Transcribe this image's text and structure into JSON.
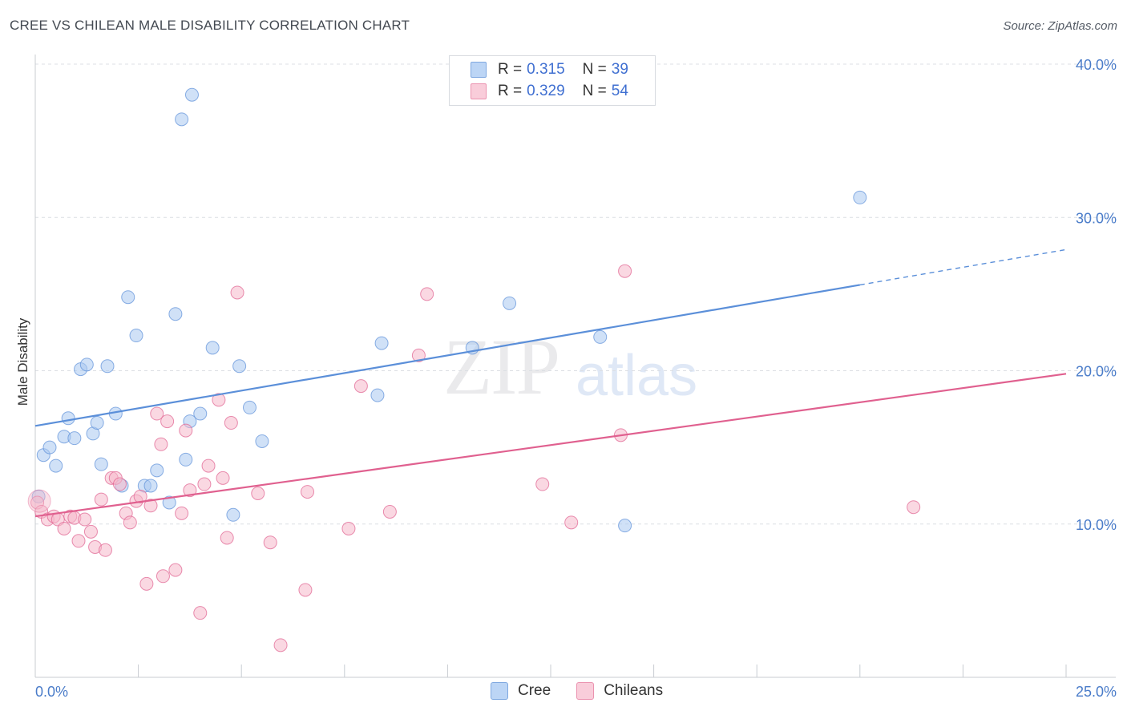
{
  "title": "CREE VS CHILEAN MALE DISABILITY CORRELATION CHART",
  "source": "Source: ZipAtlas.com",
  "watermark": {
    "zip": "ZIP",
    "atlas": "atlas"
  },
  "legend_top": [
    {
      "r_label": "R =",
      "r_value": "0.315",
      "n_label": "N =",
      "n_value": "39",
      "color": "#a9c8f0"
    },
    {
      "r_label": "R =",
      "r_value": "0.329",
      "n_label": "N =",
      "n_value": "54",
      "color": "#f5b8ca"
    }
  ],
  "legend_bottom": [
    {
      "label": "Cree",
      "color": "#a9c8f0"
    },
    {
      "label": "Chileans",
      "color": "#f5b8ca"
    }
  ],
  "chart_data": {
    "type": "scatter",
    "title": "CREE VS CHILEAN MALE DISABILITY CORRELATION CHART",
    "xlabel": "",
    "ylabel": "Male Disability",
    "xlim": [
      0,
      25
    ],
    "ylim": [
      0,
      40
    ],
    "x_tick_labels": [
      "0.0%",
      "25.0%"
    ],
    "y_ticks": [
      10,
      20,
      30,
      40
    ],
    "y_tick_labels": [
      "10.0%",
      "20.0%",
      "30.0%",
      "40.0%"
    ],
    "grid": true,
    "series": [
      {
        "name": "Cree",
        "color": "#5b8fd9",
        "fill": "#a9c8f0",
        "trend": {
          "x0": 0,
          "y0": 16.4,
          "x1": 20,
          "y1": 25.6,
          "dashed_to_x": 25,
          "dashed_to_y": 27.9
        },
        "points": [
          [
            0.08,
            11.8
          ],
          [
            0.2,
            14.5
          ],
          [
            0.35,
            15.0
          ],
          [
            0.5,
            13.8
          ],
          [
            0.7,
            15.7
          ],
          [
            0.8,
            16.9
          ],
          [
            0.95,
            15.6
          ],
          [
            1.1,
            20.1
          ],
          [
            1.25,
            20.4
          ],
          [
            1.4,
            15.9
          ],
          [
            1.5,
            16.6
          ],
          [
            1.6,
            13.9
          ],
          [
            1.75,
            20.3
          ],
          [
            1.95,
            17.2
          ],
          [
            2.1,
            12.5
          ],
          [
            2.25,
            24.8
          ],
          [
            2.45,
            22.3
          ],
          [
            2.65,
            12.5
          ],
          [
            2.8,
            12.5
          ],
          [
            2.95,
            13.5
          ],
          [
            3.25,
            11.4
          ],
          [
            3.4,
            23.7
          ],
          [
            3.55,
            36.4
          ],
          [
            3.65,
            14.2
          ],
          [
            3.75,
            16.7
          ],
          [
            3.8,
            38.0
          ],
          [
            4.0,
            17.2
          ],
          [
            4.3,
            21.5
          ],
          [
            4.8,
            10.6
          ],
          [
            4.95,
            20.3
          ],
          [
            5.2,
            17.6
          ],
          [
            5.5,
            15.4
          ],
          [
            8.3,
            18.4
          ],
          [
            8.4,
            21.8
          ],
          [
            10.6,
            21.5
          ],
          [
            11.5,
            24.4
          ],
          [
            13.7,
            22.2
          ],
          [
            14.3,
            9.9
          ],
          [
            20.0,
            31.3
          ]
        ]
      },
      {
        "name": "Chileans",
        "color": "#e0608f",
        "fill": "#f5b8ca",
        "trend": {
          "x0": 0,
          "y0": 10.5,
          "x1": 25,
          "y1": 19.8
        },
        "points": [
          [
            0.05,
            11.4
          ],
          [
            0.15,
            10.8
          ],
          [
            0.3,
            10.3
          ],
          [
            0.45,
            10.5
          ],
          [
            0.55,
            10.3
          ],
          [
            0.7,
            9.7
          ],
          [
            0.85,
            10.5
          ],
          [
            0.95,
            10.4
          ],
          [
            1.05,
            8.9
          ],
          [
            1.2,
            10.3
          ],
          [
            1.35,
            9.5
          ],
          [
            1.45,
            8.5
          ],
          [
            1.6,
            11.6
          ],
          [
            1.7,
            8.3
          ],
          [
            1.85,
            13.0
          ],
          [
            1.95,
            13.0
          ],
          [
            2.05,
            12.6
          ],
          [
            2.2,
            10.7
          ],
          [
            2.3,
            10.1
          ],
          [
            2.45,
            11.5
          ],
          [
            2.55,
            11.8
          ],
          [
            2.7,
            6.1
          ],
          [
            2.8,
            11.2
          ],
          [
            2.95,
            17.2
          ],
          [
            3.05,
            15.2
          ],
          [
            3.1,
            6.6
          ],
          [
            3.2,
            16.7
          ],
          [
            3.4,
            7.0
          ],
          [
            3.55,
            10.7
          ],
          [
            3.65,
            16.1
          ],
          [
            3.75,
            12.2
          ],
          [
            4.0,
            4.2
          ],
          [
            4.1,
            12.6
          ],
          [
            4.2,
            13.8
          ],
          [
            4.45,
            18.1
          ],
          [
            4.55,
            13.0
          ],
          [
            4.65,
            9.1
          ],
          [
            4.75,
            16.6
          ],
          [
            4.9,
            25.1
          ],
          [
            5.4,
            12.0
          ],
          [
            5.7,
            8.8
          ],
          [
            5.95,
            2.1
          ],
          [
            6.55,
            5.7
          ],
          [
            6.6,
            12.1
          ],
          [
            7.6,
            9.7
          ],
          [
            7.9,
            19.0
          ],
          [
            8.6,
            10.8
          ],
          [
            9.3,
            21.0
          ],
          [
            9.5,
            25.0
          ],
          [
            12.3,
            12.6
          ],
          [
            13.0,
            10.1
          ],
          [
            14.2,
            15.8
          ],
          [
            14.3,
            26.5
          ],
          [
            21.3,
            11.1
          ]
        ]
      }
    ]
  }
}
